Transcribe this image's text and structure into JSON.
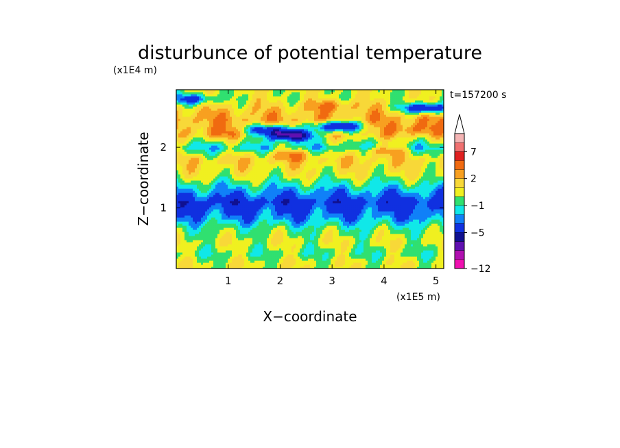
{
  "chart_data": {
    "type": "heatmap",
    "title": "disturbunce of potential temperature",
    "time_label": "t=157200 s",
    "xlabel": "X−coordinate",
    "ylabel": "Z−coordinate",
    "x_unit": "(x1E5 m)",
    "y_unit": "(x1E4 m)",
    "xlim": [
      0,
      5.15
    ],
    "ylim": [
      0,
      2.95
    ],
    "x_ticks": [
      "1",
      "2",
      "3",
      "4",
      "5"
    ],
    "y_ticks": [
      "1",
      "2"
    ],
    "colorbar": {
      "tick_labels": [
        "7",
        "2",
        "−1",
        "−5",
        "−12"
      ],
      "tick_values": [
        7,
        2,
        -1,
        -5,
        -12
      ],
      "extend": "max",
      "levels_colors": [
        {
          "min": 9,
          "color": "#f4b4b4"
        },
        {
          "min": 7,
          "color": "#f07070"
        },
        {
          "min": 5,
          "color": "#e02020"
        },
        {
          "min": 3,
          "color": "#f06a10"
        },
        {
          "min": 2,
          "color": "#f8a020"
        },
        {
          "min": 1,
          "color": "#f8d838"
        },
        {
          "min": 0,
          "color": "#f0f020"
        },
        {
          "min": -1,
          "color": "#30e070"
        },
        {
          "min": -2,
          "color": "#10e8e8"
        },
        {
          "min": -3,
          "color": "#1080f8"
        },
        {
          "min": -5,
          "color": "#1030e0"
        },
        {
          "min": -6,
          "color": "#101090"
        },
        {
          "min": -8,
          "color": "#6010b0"
        },
        {
          "min": -10,
          "color": "#b010b0"
        },
        {
          "min": -12,
          "color": "#f010b0"
        }
      ]
    },
    "field_bands_by_height": [
      {
        "z": 2.82,
        "value": 0.5
      },
      {
        "z": 2.65,
        "value": 1.5
      },
      {
        "z": 2.45,
        "value": 2.5
      },
      {
        "z": 2.2,
        "value": 1.5
      },
      {
        "z": 2.0,
        "value": -1.5
      },
      {
        "z": 1.8,
        "value": 1.5
      },
      {
        "z": 1.55,
        "value": 0.5
      },
      {
        "z": 1.35,
        "value": -1.5
      },
      {
        "z": 1.1,
        "value": -4.0
      },
      {
        "z": 0.85,
        "value": -2.5
      },
      {
        "z": 0.65,
        "value": -0.5
      },
      {
        "z": 0.45,
        "value": 0.5
      },
      {
        "z": 0.25,
        "value": -0.5
      },
      {
        "z": 0.1,
        "value": 0.5
      }
    ],
    "features": [
      {
        "x": 2.2,
        "z": 2.2,
        "value": -6.5
      },
      {
        "x": 1.8,
        "z": 2.3,
        "value": -4.0
      },
      {
        "x": 3.1,
        "z": 2.35,
        "value": -5.5
      },
      {
        "x": 4.8,
        "z": 2.65,
        "value": -5.5
      },
      {
        "x": 4.6,
        "z": 2.3,
        "value": 3.5
      },
      {
        "x": 0.9,
        "z": 2.25,
        "value": 3.0
      },
      {
        "x": 3.0,
        "z": 2.7,
        "value": 3.0
      },
      {
        "x": 2.2,
        "z": 1.9,
        "value": 2.5
      },
      {
        "x": 4.0,
        "z": 1.95,
        "value": 2.5
      },
      {
        "x": 0.3,
        "z": 2.8,
        "value": -3.5
      }
    ]
  }
}
